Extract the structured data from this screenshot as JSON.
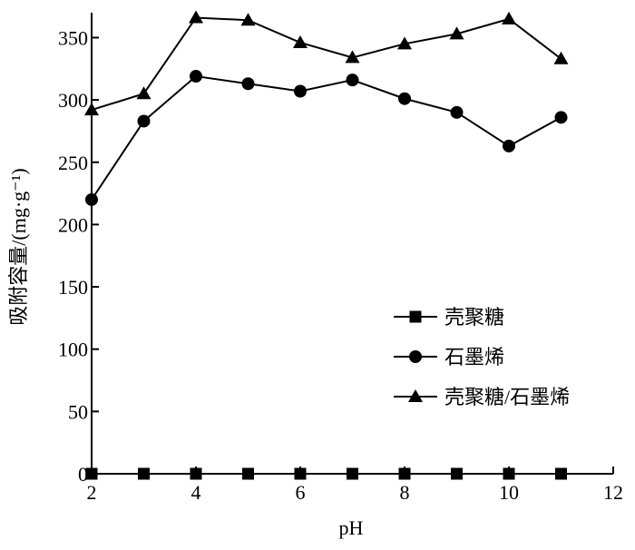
{
  "chart_data": {
    "type": "line",
    "xlabel": "pH",
    "ylabel": "吸附容量/(mg·g⁻¹)",
    "xlim": [
      2,
      12
    ],
    "ylim": [
      0,
      370
    ],
    "xticks": [
      "2",
      "4",
      "6",
      "8",
      "10",
      "12"
    ],
    "yticks": [
      "0",
      "50",
      "100",
      "150",
      "200",
      "250",
      "300",
      "350"
    ],
    "x": [
      2,
      3,
      4,
      5,
      6,
      7,
      8,
      9,
      10,
      11
    ],
    "series": [
      {
        "name": "壳聚糖",
        "marker": "square",
        "values": [
          0,
          0,
          0,
          0,
          0,
          0,
          0,
          0,
          0,
          0
        ]
      },
      {
        "name": "石墨烯",
        "marker": "circle",
        "values": [
          220,
          283,
          319,
          313,
          307,
          316,
          301,
          290,
          263,
          286
        ]
      },
      {
        "name": "壳聚糖/石墨烯",
        "marker": "triangle",
        "values": [
          292,
          305,
          366,
          364,
          346,
          334,
          345,
          353,
          365,
          333
        ]
      }
    ],
    "grid": false,
    "legend_position": "center-right",
    "colors": {
      "line": "#000000",
      "marker": "#000000"
    }
  }
}
